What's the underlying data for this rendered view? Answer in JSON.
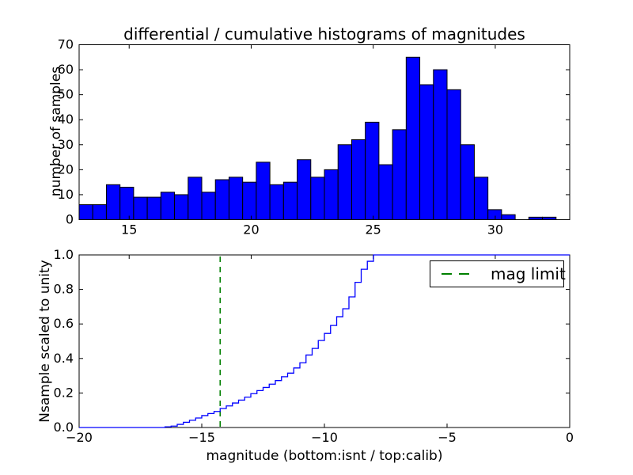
{
  "figure": {
    "background": "#ffffff",
    "frame_color": "#000000",
    "blue": "#0000ff",
    "green": "#008000"
  },
  "chart_data": [
    {
      "type": "bar",
      "subtype": "differential-histogram",
      "title": "differential / cumulative histograms of magnitudes",
      "ylabel": "number of samples",
      "xlabel": "",
      "xlim": [
        12.95,
        33.05
      ],
      "ylim": [
        0,
        70
      ],
      "xticks": [
        15,
        20,
        25,
        30
      ],
      "xtick_labels": [
        "15",
        "20",
        "25",
        "30"
      ],
      "yticks": [
        0,
        10,
        20,
        30,
        40,
        50,
        60,
        70
      ],
      "ytick_labels": [
        "0",
        "10",
        "20",
        "30",
        "40",
        "50",
        "60",
        "70"
      ],
      "bin_start": 12.95,
      "bin_width": 0.5583,
      "values": [
        6,
        6,
        14,
        13,
        9,
        9,
        11,
        10,
        17,
        11,
        16,
        17,
        15,
        23,
        14,
        15,
        24,
        17,
        20,
        30,
        32,
        39,
        22,
        36,
        65,
        54,
        60,
        52,
        30,
        17,
        4,
        2,
        0,
        1,
        1,
        0
      ],
      "bar_color": "#0000ff",
      "bar_edge_color": "#000000",
      "grid": false,
      "legend": null
    },
    {
      "type": "line",
      "subtype": "cumulative-step",
      "title": "",
      "ylabel": "Nsample scaled to unity",
      "xlabel": "magnitude (bottom:isnt / top:calib)",
      "xlim": [
        -20,
        0
      ],
      "ylim": [
        0.0,
        1.0
      ],
      "xticks": [
        -20,
        -15,
        -10,
        -5,
        0
      ],
      "xtick_labels": [
        "−20",
        "−15",
        "−10",
        "−5",
        "0"
      ],
      "yticks": [
        0.0,
        0.2,
        0.4,
        0.6,
        0.8,
        1.0
      ],
      "ytick_labels": [
        "0.0",
        "0.2",
        "0.4",
        "0.6",
        "0.8",
        "1.0"
      ],
      "top_axis_ticks_in_calib_units": [
        15,
        20,
        25,
        30
      ],
      "line_color": "#0000ff",
      "steps": {
        "x_start": -16.5,
        "x_step": 0.25,
        "levels": [
          0.004,
          0.008,
          0.018,
          0.03,
          0.042,
          0.055,
          0.069,
          0.081,
          0.093,
          0.11,
          0.125,
          0.142,
          0.159,
          0.176,
          0.196,
          0.214,
          0.232,
          0.251,
          0.272,
          0.294,
          0.315,
          0.345,
          0.375,
          0.42,
          0.458,
          0.504,
          0.545,
          0.591,
          0.642,
          0.688,
          0.757,
          0.841,
          0.917,
          0.963,
          1.0
        ],
        "start_level": 0.0,
        "end_level": 1.0
      },
      "mag_limit_line": {
        "x": -14.25,
        "color": "#008000",
        "style": "dashed",
        "label": "mag limit"
      },
      "legend": {
        "label": "mag limit",
        "position": "upper right",
        "sample_color": "#008000",
        "sample_style": "dashed"
      },
      "grid": false
    }
  ]
}
